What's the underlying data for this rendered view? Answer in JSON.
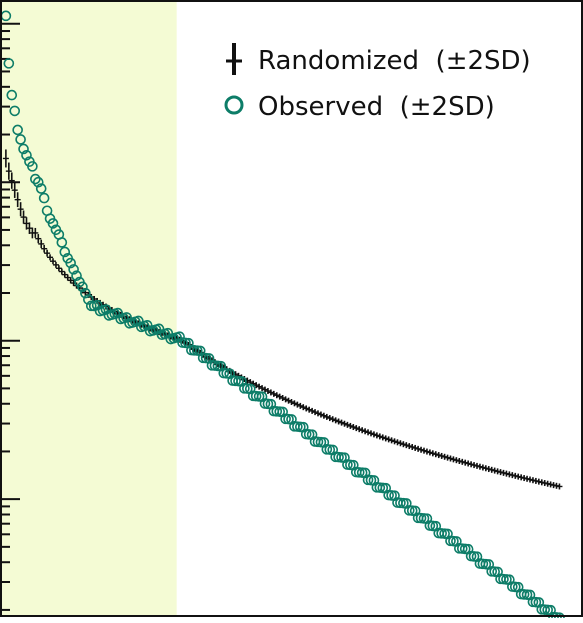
{
  "chart_data": {
    "type": "scatter",
    "title": "",
    "xlabel": "",
    "ylabel": "",
    "y_scale": "log",
    "grid": false,
    "legend_placement": "top-right",
    "colors": {
      "shaded_region": "#f4fbd4",
      "randomized": "#111111",
      "observed": "#0d7d68",
      "axes": "#111111"
    },
    "x_range": [
      -2,
      196
    ],
    "y_range_log10": [
      -1.75,
      2.15
    ],
    "shaded_x_range": [
      -2,
      58
    ],
    "series": [
      {
        "name": "Randomized",
        "legend_label": "Randomized  (±2SD)",
        "marker": "plus",
        "n": 189,
        "head_log10": [
          1.15,
          1.07,
          1.01,
          0.95,
          0.89,
          0.83,
          0.78,
          0.74,
          0.71,
          0.68
        ],
        "log10_y_at_x10": 0.68,
        "log10_y_at_x60": 0.0,
        "log10_y_at_x188": -0.92
      },
      {
        "name": "Observed",
        "legend_label": "Observed  (±2SD)",
        "marker": "circle-open",
        "n": 189,
        "log10_y": [
          2.05,
          1.75,
          1.55,
          1.45,
          1.33,
          1.27,
          1.21,
          1.17,
          1.13,
          1.1,
          1.02,
          1.0,
          0.96,
          0.9,
          0.82,
          0.77,
          0.74,
          0.7,
          0.67,
          0.62,
          0.56,
          0.52,
          0.49,
          0.45,
          0.41,
          0.37,
          0.34,
          0.3,
          0.26,
          0.22
        ],
        "log10_y_at_x60": 0.0,
        "log10_y_at_x188": -1.76
      }
    ]
  }
}
